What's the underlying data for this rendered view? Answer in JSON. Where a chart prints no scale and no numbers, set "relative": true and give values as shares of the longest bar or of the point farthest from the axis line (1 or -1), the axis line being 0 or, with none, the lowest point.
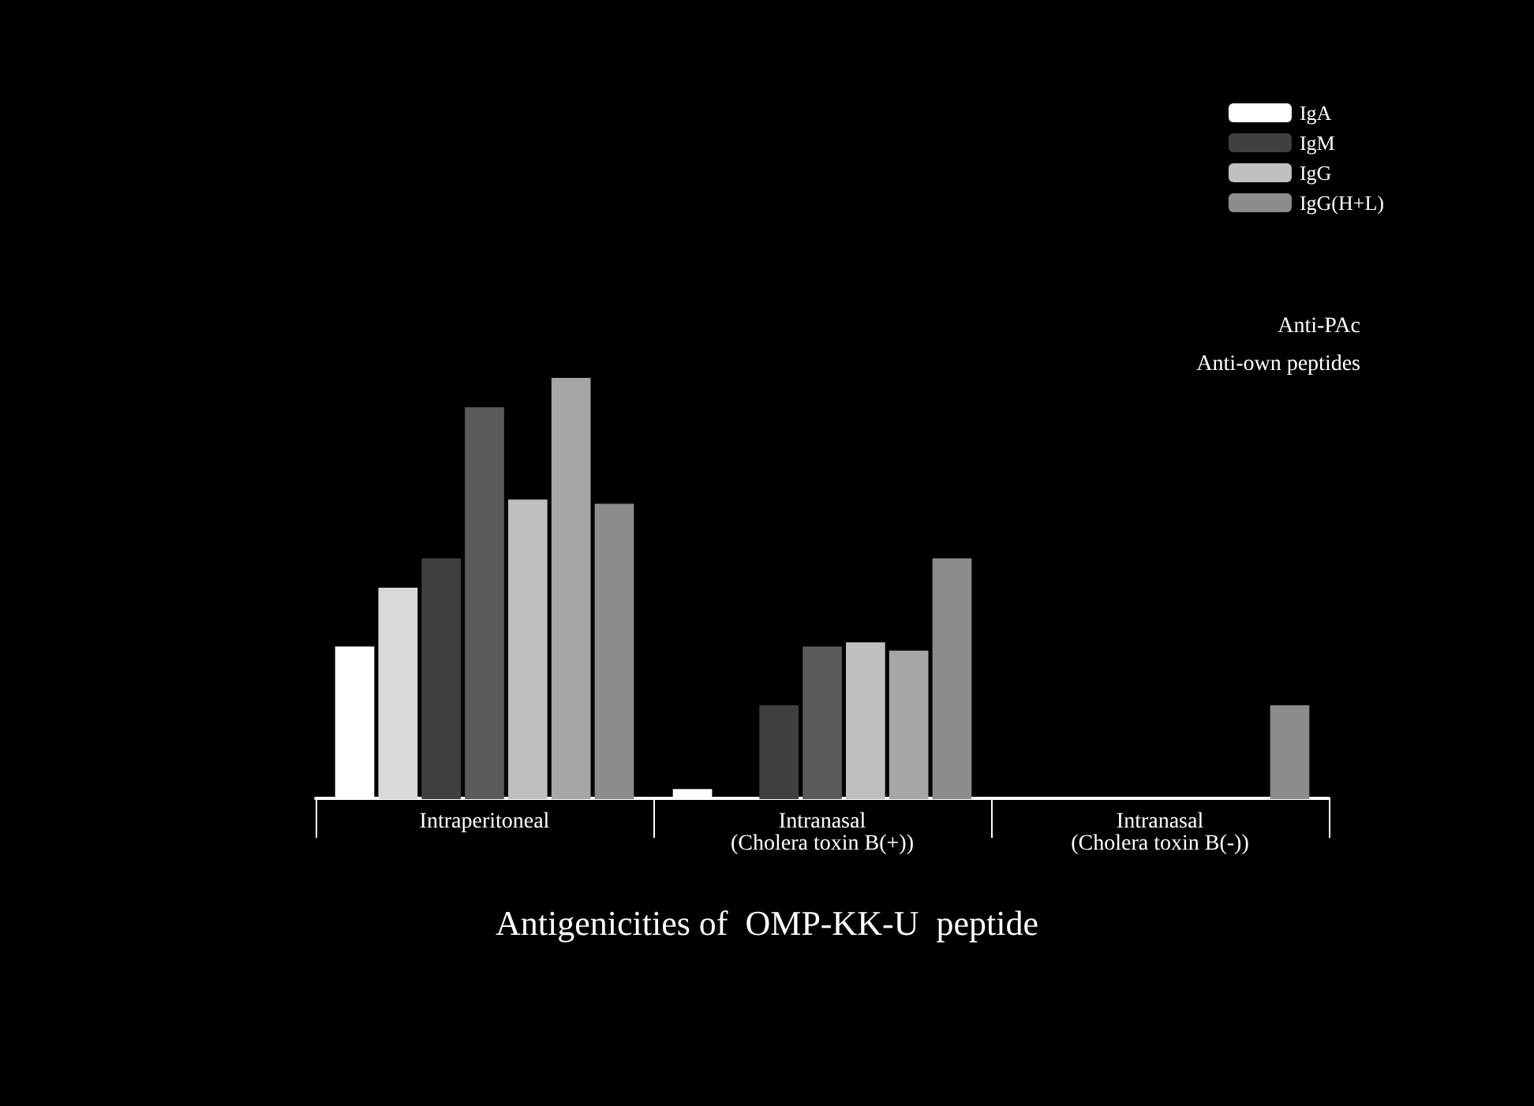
{
  "chart_data": {
    "type": "bar",
    "title": "Antigenicities of  OMP-KK-U  peptide",
    "relative": true,
    "categories": [
      "Intraperitoneal",
      "Intranasal\n(Cholera toxin B(+))",
      "Intranasal\n(Cholera toxin B(-))"
    ],
    "series": [
      {
        "name": "IgA",
        "color": "#ffffff",
        "values": [
          0.36,
          0.02,
          null
        ]
      },
      {
        "color": "#d9d9d9",
        "values": [
          0.5,
          null,
          null
        ]
      },
      {
        "name": "IgM",
        "color": "#404040",
        "values": [
          0.57,
          0.22,
          null
        ]
      },
      {
        "color": "#5a5a5a",
        "values": [
          0.93,
          0.36,
          null
        ]
      },
      {
        "name": "IgG",
        "color": "#bfbfbf",
        "values": [
          0.71,
          0.37,
          null
        ]
      },
      {
        "color": "#a6a6a6",
        "values": [
          1,
          0.35,
          null
        ]
      },
      {
        "name": "IgG(H+L)",
        "color": "#8c8c8c",
        "values": [
          0.7,
          0.57,
          0.22
        ]
      }
    ],
    "legend": "top right",
    "annotations": [
      "Anti-PAc",
      "Anti-own peptides"
    ]
  }
}
